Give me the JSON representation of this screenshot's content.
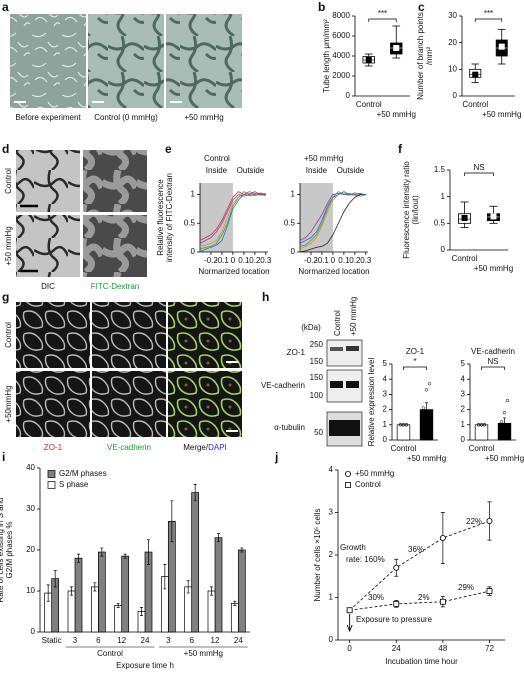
{
  "panels": [
    "a",
    "b",
    "c",
    "d",
    "e",
    "f",
    "g",
    "h",
    "i",
    "j"
  ],
  "images_a": {
    "labels": [
      "Before experiment",
      "Control (0 mmHg)",
      "+50 mmHg"
    ]
  },
  "images_d": {
    "rows": [
      "Control",
      "+50 mmHg"
    ],
    "columns": [
      "DIC",
      "FITC-Dextran"
    ]
  },
  "images_g": {
    "rows": [
      "Control",
      "+50mmHg"
    ],
    "columns": [
      "ZO-1",
      "VE-cadherin"
    ],
    "merge_label": [
      "Merge/",
      "DAPI"
    ]
  },
  "blot": {
    "unit": "(kDa)",
    "lanes": [
      "Control",
      "+50 mmHg"
    ],
    "proteins": [
      "ZO-1",
      "VE-cadherin",
      "α-tubulin"
    ],
    "markers": [
      250,
      150,
      150,
      100,
      50
    ]
  },
  "chart_data": [
    {
      "type": "box",
      "ylabel": [
        "Tube length  μm/mm²"
      ],
      "categories": [
        "Control",
        "+50 mmHg"
      ],
      "colors": [
        "#ffffff",
        "#000000"
      ],
      "boxes": [
        {
          "min": 3000,
          "q1": 3300,
          "median": 3600,
          "q3": 3950,
          "max": 4200,
          "mean": 3600
        },
        {
          "min": 3800,
          "q1": 4200,
          "median": 4800,
          "q3": 5300,
          "max": 7000,
          "mean": 4800
        }
      ],
      "ylim": [
        0,
        8000
      ],
      "yticks": [
        0,
        2000,
        4000,
        6000,
        8000
      ],
      "significance": "***"
    },
    {
      "type": "box",
      "ylabel": [
        "Number of branch points",
        "/mm²"
      ],
      "categories": [
        "Control",
        "+50 mmHg"
      ],
      "colors": [
        "#ffffff",
        "#000000"
      ],
      "boxes": [
        {
          "min": 5,
          "q1": 7,
          "median": 8,
          "q3": 10,
          "max": 12,
          "mean": 8
        },
        {
          "min": 12,
          "q1": 15,
          "median": 18,
          "q3": 21,
          "max": 25,
          "mean": 18.5
        }
      ],
      "ylim": [
        0,
        30
      ],
      "yticks": [
        0,
        10,
        20,
        30
      ],
      "significance": "***"
    },
    {
      "type": "line",
      "group": "Control",
      "inside": "Inside",
      "outside": "Outside",
      "ylabel": [
        "Relative fluorescence",
        "intensity of FITC-Dextran"
      ],
      "xlabel": "Normarized location",
      "x": [
        -0.3,
        -0.25,
        -0.2,
        -0.15,
        -0.1,
        -0.05,
        0,
        0.05,
        0.1,
        0.15,
        0.2,
        0.25,
        0.3
      ],
      "shade_x": [
        -0.3,
        0
      ],
      "series": [
        {
          "color": "#f08a24",
          "values": [
            0.1,
            0.12,
            0.15,
            0.2,
            0.35,
            0.6,
            0.85,
            0.95,
            1.0,
            1.02,
            1.0,
            1.03,
            1.0
          ]
        },
        {
          "color": "#3aa53a",
          "values": [
            0.05,
            0.08,
            0.1,
            0.15,
            0.3,
            0.5,
            0.8,
            0.95,
            1.05,
            1.0,
            0.98,
            1.0,
            1.02
          ]
        },
        {
          "color": "#8e44ad",
          "values": [
            0.15,
            0.2,
            0.25,
            0.35,
            0.5,
            0.7,
            0.9,
            1.0,
            0.97,
            1.0,
            1.05,
            1.0,
            0.98
          ]
        },
        {
          "color": "#2e6fd0",
          "values": [
            0.0,
            0.05,
            0.08,
            0.12,
            0.2,
            0.45,
            0.75,
            0.9,
            1.0,
            1.05,
            1.02,
            0.99,
            1.0
          ]
        },
        {
          "color": "#d63030",
          "values": [
            0.2,
            0.25,
            0.3,
            0.4,
            0.55,
            0.75,
            0.95,
            1.05,
            1.0,
            0.98,
            1.0,
            1.02,
            1.0
          ]
        }
      ],
      "xlim": [
        -0.3,
        0.32
      ],
      "xticks": [
        -0.2,
        -0.1,
        0,
        0.1,
        0.2,
        0.3
      ],
      "ylim": [
        0,
        1.2
      ],
      "yticks": [
        0,
        0.5,
        1
      ]
    },
    {
      "type": "line",
      "group": "+50 mmHg",
      "inside": "Inside",
      "outside": "Outside",
      "xlabel": "Normarized location",
      "x": [
        -0.3,
        -0.25,
        -0.2,
        -0.15,
        -0.1,
        -0.05,
        0,
        0.05,
        0.1,
        0.15,
        0.2,
        0.25,
        0.3
      ],
      "shade_x": [
        -0.3,
        0
      ],
      "series": [
        {
          "color": "#f08a24",
          "values": [
            0.05,
            0.1,
            0.15,
            0.25,
            0.45,
            0.7,
            0.9,
            1.0,
            1.02,
            1.0,
            0.98,
            1.0,
            1.0
          ]
        },
        {
          "color": "#3aa53a",
          "values": [
            0.1,
            0.12,
            0.2,
            0.3,
            0.5,
            0.75,
            0.95,
            1.05,
            1.0,
            1.02,
            1.0,
            0.97,
            1.0
          ]
        },
        {
          "color": "#8e44ad",
          "values": [
            0.2,
            0.25,
            0.35,
            0.5,
            0.65,
            0.85,
            1.0,
            1.02,
            1.0,
            0.99,
            1.03,
            1.0,
            1.0
          ]
        },
        {
          "color": "#222222",
          "values": [
            0.0,
            0.02,
            0.05,
            0.08,
            0.1,
            0.15,
            0.3,
            0.5,
            0.7,
            0.85,
            0.95,
            1.0,
            1.0
          ]
        },
        {
          "color": "#2e6fd0",
          "values": [
            0.15,
            0.2,
            0.25,
            0.35,
            0.55,
            0.8,
            0.95,
            1.0,
            1.05,
            1.0,
            1.0,
            1.02,
            0.99
          ]
        }
      ],
      "xlim": [
        -0.3,
        0.32
      ],
      "xticks": [
        -0.2,
        -0.1,
        0,
        0.1,
        0.2,
        0.3
      ],
      "ylim": [
        0,
        1.2
      ],
      "yticks": [
        0,
        0.5,
        1
      ]
    },
    {
      "type": "box",
      "ylabel": [
        "Fluorescence intensity ratio",
        "(Iin/Iout)"
      ],
      "categories": [
        "Control",
        "+50 mmHg"
      ],
      "colors": [
        "#ffffff",
        "#000000"
      ],
      "boxes": [
        {
          "min": 0.42,
          "q1": 0.5,
          "median": 0.58,
          "q3": 0.68,
          "max": 0.9,
          "mean": 0.6
        },
        {
          "min": 0.5,
          "q1": 0.55,
          "median": 0.62,
          "q3": 0.68,
          "max": 0.82,
          "mean": 0.63
        }
      ],
      "ylim": [
        0,
        1.5
      ],
      "yticks": [
        0,
        0.5,
        1,
        1.5
      ],
      "significance": "NS"
    },
    {
      "type": "bar",
      "title": "ZO-1",
      "ylabel": [
        "Relative expression level"
      ],
      "categories": [
        "Control",
        "+50 mmHg"
      ],
      "colors": [
        "#ffffff",
        "#000000"
      ],
      "values": [
        1,
        2.0
      ],
      "errors": [
        0,
        0.45
      ],
      "points": [
        [
          1,
          1,
          1,
          1,
          1,
          1
        ],
        [
          0.7,
          1.1,
          1.5,
          2.1,
          3.3,
          3.7
        ]
      ],
      "ylim": [
        0,
        5
      ],
      "yticks": [
        0,
        1,
        2,
        3,
        4,
        5
      ],
      "significance": "*"
    },
    {
      "type": "bar",
      "title": "VE-cadherin",
      "categories": [
        "Control",
        "+50 mmHg"
      ],
      "colors": [
        "#ffffff",
        "#000000"
      ],
      "values": [
        1,
        1.1
      ],
      "errors": [
        0,
        0.35
      ],
      "points": [
        [
          1,
          1,
          1,
          1,
          1,
          1
        ],
        [
          0.4,
          0.6,
          0.9,
          1.2,
          1.8,
          2.6
        ]
      ],
      "ylim": [
        0,
        5
      ],
      "yticks": [
        0,
        1,
        2,
        3,
        4,
        5
      ],
      "significance": "NS"
    },
    {
      "type": "bar",
      "ylabel": [
        "Rate of cells existing in S and",
        "G2/M phases  %"
      ],
      "xlabel": "Exposure time  h",
      "categories": [
        "Static",
        "3",
        "6",
        "12",
        "24",
        "3",
        "6",
        "12",
        "24"
      ],
      "groups": [
        "Control",
        "+50 mmHg"
      ],
      "series": [
        {
          "name": "G2/M phases",
          "color": "#808080",
          "values": [
            13,
            18,
            19.5,
            18.5,
            19.5,
            27,
            34,
            23,
            20
          ],
          "errors": [
            2,
            1,
            1,
            0.5,
            3,
            5,
            2,
            1,
            0.5
          ]
        },
        {
          "name": "S phase",
          "color": "#ffffff",
          "values": [
            9.5,
            10,
            11,
            6.5,
            5,
            13.5,
            11,
            10,
            7
          ],
          "errors": [
            2,
            1,
            1,
            0.5,
            1,
            3,
            1.5,
            1,
            0.5
          ]
        }
      ],
      "ylim": [
        0,
        40
      ],
      "yticks": [
        0,
        10,
        20,
        30,
        40
      ],
      "legend": "top-left"
    },
    {
      "type": "line",
      "ylabel": [
        "Number of cells  ×10⁵ cells"
      ],
      "xlabel": "Incubation time  hour",
      "x": [
        0,
        24,
        48,
        72
      ],
      "series": [
        {
          "name": "+50 mmHg",
          "color": "#000000",
          "marker": "circle",
          "line_style": "dashed",
          "values": [
            0.7,
            1.7,
            2.4,
            2.8
          ],
          "errors": [
            0.05,
            0.2,
            0.6,
            0.45
          ]
        },
        {
          "name": "Control",
          "color": "#000000",
          "marker": "square",
          "line_style": "dashed",
          "values": [
            0.7,
            0.85,
            0.9,
            1.15
          ],
          "errors": [
            0.05,
            0.08,
            0.12,
            0.1
          ]
        }
      ],
      "xlim": [
        -6,
        80
      ],
      "xticks": [
        0,
        24,
        48,
        72
      ],
      "ylim": [
        0,
        4
      ],
      "yticks": [
        0,
        1,
        2,
        3,
        4
      ],
      "legend": "top-left",
      "annotations": [
        "Growth",
        "rate: 160%",
        "36%",
        "22%",
        "30%",
        "2%",
        "29%",
        "Exposure to pressure"
      ]
    }
  ]
}
